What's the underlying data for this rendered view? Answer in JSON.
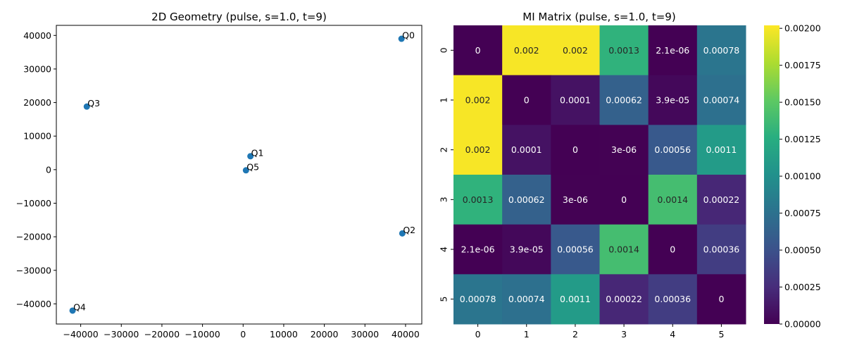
{
  "chart_data": [
    {
      "type": "scatter",
      "title": "2D Geometry (pulse, s=1.0, t=9)",
      "xlabel": "",
      "ylabel": "",
      "xlim": [
        -46000,
        44000
      ],
      "ylim": [
        -46000,
        43000
      ],
      "xticks": [
        -40000,
        -30000,
        -20000,
        -10000,
        0,
        10000,
        20000,
        30000,
        40000
      ],
      "yticks": [
        -40000,
        -30000,
        -20000,
        -10000,
        0,
        10000,
        20000,
        30000,
        40000
      ],
      "marker_color": "#1f77b4",
      "points": [
        {
          "label": "Q0",
          "x": 39000,
          "y": 39000
        },
        {
          "label": "Q1",
          "x": 1800,
          "y": 4000
        },
        {
          "label": "Q2",
          "x": 39200,
          "y": -19000
        },
        {
          "label": "Q3",
          "x": -38500,
          "y": 18800
        },
        {
          "label": "Q4",
          "x": -42000,
          "y": -42000
        },
        {
          "label": "Q5",
          "x": 700,
          "y": -200
        }
      ]
    },
    {
      "type": "heatmap",
      "title": "MI Matrix (pulse, s=1.0, t=9)",
      "categories": [
        "0",
        "1",
        "2",
        "3",
        "4",
        "5"
      ],
      "colormap": "viridis",
      "vmin": 0,
      "vmax": 0.00202,
      "colorbar_ticks": [
        "0.00000",
        "0.00025",
        "0.00050",
        "0.00075",
        "0.00100",
        "0.00125",
        "0.00150",
        "0.00175",
        "0.00200"
      ],
      "values": [
        [
          0,
          0.002,
          0.002,
          0.0013,
          2.1e-06,
          0.00078
        ],
        [
          0.002,
          0,
          0.0001,
          0.00062,
          3.9e-05,
          0.00074
        ],
        [
          0.002,
          0.0001,
          0,
          3e-06,
          0.00056,
          0.0011
        ],
        [
          0.0013,
          0.00062,
          3e-06,
          0,
          0.0014,
          0.00022
        ],
        [
          2.1e-06,
          3.9e-05,
          0.00056,
          0.0014,
          0,
          0.00036
        ],
        [
          0.00078,
          0.00074,
          0.0011,
          0.00022,
          0.00036,
          0
        ]
      ],
      "labels": [
        [
          "0",
          "0.002",
          "0.002",
          "0.0013",
          "2.1e-06",
          "0.00078"
        ],
        [
          "0.002",
          "0",
          "0.0001",
          "0.00062",
          "3.9e-05",
          "0.00074"
        ],
        [
          "0.002",
          "0.0001",
          "0",
          "3e-06",
          "0.00056",
          "0.0011"
        ],
        [
          "0.0013",
          "0.00062",
          "3e-06",
          "0",
          "0.0014",
          "0.00022"
        ],
        [
          "2.1e-06",
          "3.9e-05",
          "0.00056",
          "0.0014",
          "0",
          "0.00036"
        ],
        [
          "0.00078",
          "0.00074",
          "0.0011",
          "0.00022",
          "0.00036",
          "0"
        ]
      ]
    }
  ]
}
